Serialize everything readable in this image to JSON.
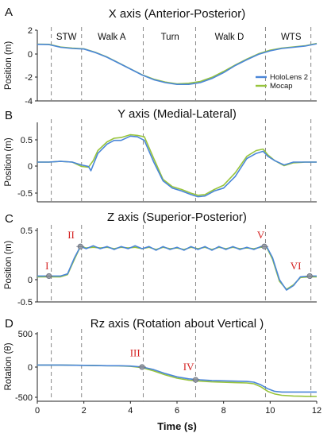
{
  "chart_data": [
    {
      "type": "line",
      "panel_label": "A",
      "title": "X axis (Anterior-Posterior)",
      "ylabel": "Position (m)",
      "xlabel": "",
      "xlim": [
        0,
        12
      ],
      "ylim": [
        -4,
        2
      ],
      "yticks": [
        "2",
        "0",
        "-2",
        "-4"
      ],
      "xticks": [],
      "phase_labels": [
        {
          "text": "STW",
          "x": 1.25
        },
        {
          "text": "Walk A",
          "x": 3.2
        },
        {
          "text": "Turn",
          "x": 5.7
        },
        {
          "text": "Walk D",
          "x": 8.25
        },
        {
          "text": "WTS",
          "x": 10.9
        }
      ],
      "legend": {
        "position": "right",
        "entries": [
          "HoloLens 2",
          "Mocap"
        ]
      },
      "series": [
        {
          "name": "HoloLens 2",
          "color": "#4a86d8",
          "x": [
            0,
            0.5,
            1,
            1.5,
            2,
            2.5,
            3,
            3.5,
            4,
            4.5,
            5,
            5.5,
            6,
            6.5,
            7,
            7.5,
            8,
            8.5,
            9,
            9.5,
            10,
            10.5,
            11,
            11.5,
            12
          ],
          "y": [
            0.8,
            0.78,
            0.55,
            0.45,
            0.4,
            0.1,
            -0.3,
            -0.8,
            -1.3,
            -1.8,
            -2.2,
            -2.45,
            -2.6,
            -2.6,
            -2.45,
            -2.1,
            -1.6,
            -1.0,
            -0.5,
            -0.05,
            0.25,
            0.45,
            0.55,
            0.65,
            0.85
          ]
        },
        {
          "name": "Mocap",
          "color": "#98c43c",
          "x": [
            0,
            0.5,
            1,
            1.5,
            2,
            2.5,
            3,
            3.5,
            4,
            4.5,
            5,
            5.5,
            6,
            6.5,
            7,
            7.5,
            8,
            8.5,
            9,
            9.5,
            10,
            10.5,
            11,
            11.5,
            12
          ],
          "y": [
            0.82,
            0.8,
            0.57,
            0.48,
            0.42,
            0.12,
            -0.28,
            -0.78,
            -1.28,
            -1.78,
            -2.15,
            -2.4,
            -2.55,
            -2.5,
            -2.35,
            -2.0,
            -1.5,
            -0.95,
            -0.45,
            0.0,
            0.3,
            0.48,
            0.58,
            0.68,
            0.88
          ]
        }
      ]
    },
    {
      "type": "line",
      "panel_label": "B",
      "title": "Y axis (Medial-Lateral)",
      "ylabel": "Position (m)",
      "xlabel": "",
      "xlim": [
        0,
        12
      ],
      "ylim": [
        -0.55,
        0.55
      ],
      "yticks": [
        "0.5",
        "0",
        "-0.5"
      ],
      "xticks": [],
      "series": [
        {
          "name": "HoloLens 2",
          "color": "#4a86d8",
          "x": [
            0,
            0.5,
            1,
            1.5,
            1.9,
            2.2,
            2.3,
            2.4,
            2.6,
            3,
            3.3,
            3.6,
            4,
            4.3,
            4.6,
            5,
            5.4,
            5.8,
            6.2,
            6.6,
            6.9,
            7.2,
            7.6,
            8,
            8.5,
            9,
            9.4,
            9.7,
            9.9,
            10.2,
            10.6,
            11,
            11.5,
            12
          ],
          "y": [
            0,
            0,
            0.01,
            0,
            -0.04,
            -0.06,
            -0.12,
            -0.04,
            0.12,
            0.25,
            0.3,
            0.3,
            0.36,
            0.35,
            0.3,
            0.0,
            -0.26,
            -0.36,
            -0.4,
            -0.45,
            -0.48,
            -0.47,
            -0.4,
            -0.36,
            -0.2,
            0.05,
            0.12,
            0.15,
            0.08,
            0.02,
            -0.04,
            0.0,
            0.0,
            0.0
          ]
        },
        {
          "name": "Mocap",
          "color": "#98c43c",
          "x": [
            0,
            0.5,
            1,
            1.5,
            1.9,
            2.2,
            2.4,
            2.6,
            3,
            3.3,
            3.6,
            4,
            4.3,
            4.6,
            5,
            5.4,
            5.8,
            6.2,
            6.6,
            6.9,
            7.2,
            7.6,
            8,
            8.5,
            9,
            9.4,
            9.7,
            9.9,
            10.2,
            10.6,
            11,
            11.5,
            12
          ],
          "y": [
            0,
            0,
            0.01,
            0,
            -0.06,
            -0.07,
            0.02,
            0.16,
            0.28,
            0.33,
            0.34,
            0.38,
            0.37,
            0.35,
            0.05,
            -0.24,
            -0.34,
            -0.38,
            -0.43,
            -0.46,
            -0.45,
            -0.38,
            -0.32,
            -0.15,
            0.08,
            0.16,
            0.18,
            0.1,
            0.02,
            -0.05,
            -0.01,
            0.0,
            0.0
          ]
        }
      ]
    },
    {
      "type": "line",
      "panel_label": "C",
      "title": "Z axis (Superior-Posterior)",
      "ylabel": "Position (m)",
      "xlabel": "",
      "xlim": [
        0,
        12
      ],
      "ylim": [
        -0.5,
        0.5
      ],
      "yticks": [
        "0.5",
        "0",
        "-0.5"
      ],
      "xticks": [],
      "annotations": [
        {
          "text": "I",
          "x": 0.42,
          "y": -0.06
        },
        {
          "text": "II",
          "x": 1.45,
          "y": 0.36
        },
        {
          "text": "V",
          "x": 9.6,
          "y": 0.36
        },
        {
          "text": "VI",
          "x": 11.1,
          "y": -0.06
        }
      ],
      "markers": [
        {
          "x": 0.5,
          "y": -0.15
        },
        {
          "x": 1.85,
          "y": 0.25
        },
        {
          "x": 9.75,
          "y": 0.25
        },
        {
          "x": 11.7,
          "y": -0.15
        }
      ],
      "series": [
        {
          "name": "HoloLens 2",
          "color": "#4a86d8",
          "x": [
            0,
            0.5,
            1,
            1.3,
            1.6,
            1.85,
            2.1,
            2.4,
            2.7,
            3,
            3.3,
            3.6,
            3.9,
            4.2,
            4.5,
            4.8,
            5.1,
            5.4,
            5.7,
            6,
            6.3,
            6.6,
            6.9,
            7.2,
            7.5,
            7.8,
            8.1,
            8.4,
            8.7,
            9,
            9.3,
            9.6,
            9.85,
            10.1,
            10.4,
            10.7,
            11,
            11.3,
            11.7,
            12
          ],
          "y": [
            -0.15,
            -0.15,
            -0.15,
            -0.12,
            0.1,
            0.25,
            0.22,
            0.26,
            0.22,
            0.25,
            0.21,
            0.25,
            0.22,
            0.26,
            0.22,
            0.25,
            0.2,
            0.25,
            0.21,
            0.24,
            0.2,
            0.25,
            0.21,
            0.25,
            0.2,
            0.25,
            0.21,
            0.25,
            0.21,
            0.24,
            0.21,
            0.25,
            0.25,
            0.1,
            -0.2,
            -0.34,
            -0.28,
            -0.16,
            -0.15,
            -0.15
          ]
        },
        {
          "name": "Mocap",
          "color": "#98c43c",
          "x": [
            0,
            0.5,
            1,
            1.3,
            1.6,
            1.85,
            2.1,
            2.4,
            2.7,
            3,
            3.3,
            3.6,
            3.9,
            4.2,
            4.5,
            4.8,
            5.1,
            5.4,
            5.7,
            6,
            6.3,
            6.6,
            6.9,
            7.2,
            7.5,
            7.8,
            8.1,
            8.4,
            8.7,
            9,
            9.3,
            9.6,
            9.85,
            10.1,
            10.4,
            10.7,
            11,
            11.3,
            11.7,
            12
          ],
          "y": [
            -0.16,
            -0.16,
            -0.16,
            -0.13,
            0.08,
            0.25,
            0.23,
            0.24,
            0.23,
            0.24,
            0.22,
            0.24,
            0.23,
            0.24,
            0.22,
            0.24,
            0.21,
            0.24,
            0.22,
            0.23,
            0.21,
            0.24,
            0.22,
            0.24,
            0.21,
            0.24,
            0.22,
            0.24,
            0.22,
            0.23,
            0.22,
            0.24,
            0.24,
            0.08,
            -0.22,
            -0.33,
            -0.27,
            -0.17,
            -0.16,
            -0.16
          ]
        }
      ]
    },
    {
      "type": "line",
      "panel_label": "D",
      "title": "Rz axis (Rotation about Vertical )",
      "ylabel": "Rotation (θ)",
      "xlabel": "Time (s)",
      "xlim": [
        0,
        12
      ],
      "ylim": [
        -550,
        500
      ],
      "yticks": [
        "500",
        "0",
        "-500"
      ],
      "xticks": [
        "0",
        "2",
        "4",
        "6",
        "8",
        "10",
        "12"
      ],
      "annotations": [
        {
          "text": "III",
          "x": 4.2,
          "y": 130
        },
        {
          "text": "IV",
          "x": 6.5,
          "y": -80
        }
      ],
      "markers": [
        {
          "x": 4.5,
          "y": -30
        },
        {
          "x": 6.8,
          "y": -225
        }
      ],
      "series": [
        {
          "name": "HoloLens 2",
          "color": "#4a86d8",
          "x": [
            0,
            1,
            2,
            3,
            3.5,
            4,
            4.5,
            5,
            5.5,
            6,
            6.5,
            7,
            7.5,
            8,
            8.5,
            9,
            9.3,
            9.6,
            9.9,
            10.2,
            10.5,
            11,
            11.5,
            12
          ],
          "y": [
            0,
            0,
            -5,
            -10,
            -10,
            -15,
            -30,
            -70,
            -130,
            -180,
            -210,
            -225,
            -235,
            -240,
            -245,
            -250,
            -260,
            -300,
            -360,
            -400,
            -410,
            -410,
            -410,
            -410
          ]
        },
        {
          "name": "Mocap",
          "color": "#98c43c",
          "x": [
            0,
            1,
            2,
            3,
            3.5,
            4,
            4.5,
            5,
            5.5,
            6,
            6.5,
            7,
            7.5,
            8,
            8.5,
            9,
            9.3,
            9.6,
            9.9,
            10.2,
            10.5,
            11,
            11.5,
            12
          ],
          "y": [
            0,
            0,
            -5,
            -10,
            -12,
            -20,
            -40,
            -90,
            -150,
            -200,
            -230,
            -245,
            -255,
            -262,
            -268,
            -272,
            -285,
            -330,
            -400,
            -440,
            -460,
            -470,
            -475,
            -478
          ]
        }
      ]
    }
  ],
  "event_lines_x": [
    0.6,
    1.9,
    4.55,
    6.8,
    9.8,
    11.75
  ]
}
